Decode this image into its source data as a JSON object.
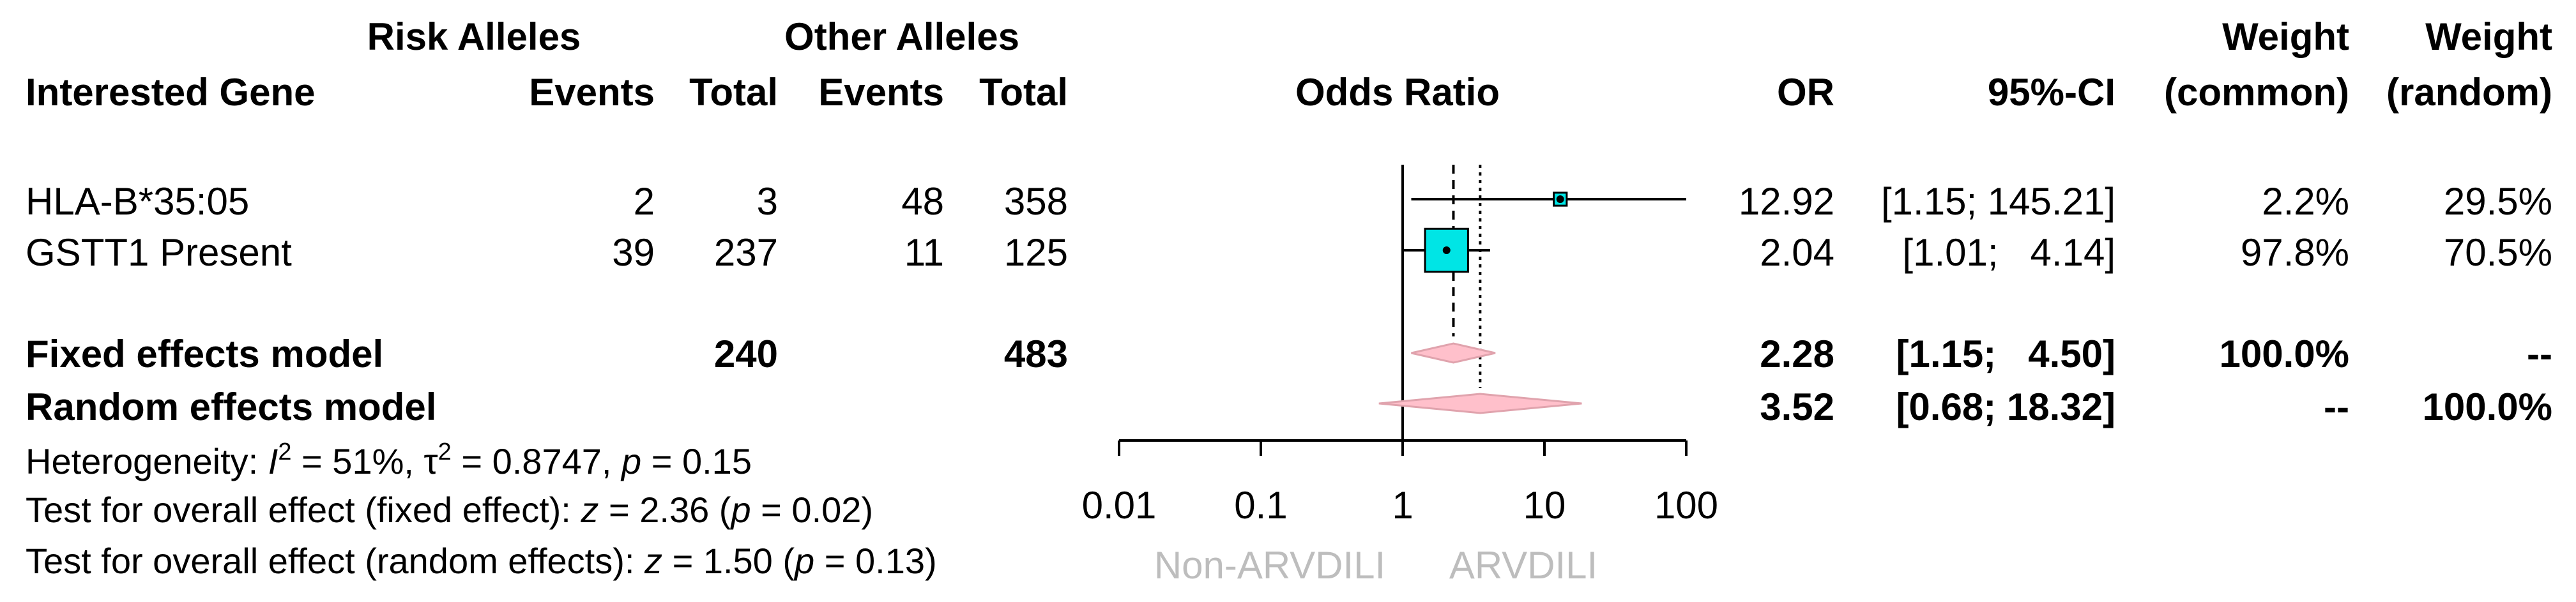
{
  "chart_data": {
    "type": "forest",
    "xscale": "log",
    "xlim": [
      0.01,
      100
    ],
    "xlabel": "Odds Ratio",
    "xticks": [
      "0.01",
      "0.1",
      "1",
      "10",
      "100"
    ],
    "left_label": "Non-ARVDILI",
    "right_label": "ARVDILI",
    "headers": {
      "gene": "Interested Gene",
      "risk_group": "Risk Alleles",
      "other_group": "Other Alleles",
      "events": "Events",
      "total": "Total",
      "or": "OR",
      "ci": "95%-CI",
      "weight": "Weight",
      "common": "(common)",
      "random": "(random)"
    },
    "studies": [
      {
        "name": "HLA-B*35:05",
        "risk_events": "2",
        "risk_total": "3",
        "other_events": "48",
        "other_total": "358",
        "or": 12.92,
        "lower": 1.15,
        "upper": 145.21,
        "or_text": "12.92",
        "ci_text": "[1.15; 145.21]",
        "w_common": "2.2%",
        "w_random": "29.5%",
        "weight_common": 2.2
      },
      {
        "name": "GSTT1 Present",
        "risk_events": "39",
        "risk_total": "237",
        "other_events": "11",
        "other_total": "125",
        "or": 2.04,
        "lower": 1.01,
        "upper": 4.14,
        "or_text": "2.04",
        "ci_text": "[1.01;   4.14]",
        "w_common": "97.8%",
        "w_random": "70.5%",
        "weight_common": 97.8
      }
    ],
    "pooled": [
      {
        "name": "Fixed effects model",
        "risk_total": "240",
        "other_total": "483",
        "or": 2.28,
        "lower": 1.15,
        "upper": 4.5,
        "or_text": "2.28",
        "ci_text": "[1.15;   4.50]",
        "w_common": "100.0%",
        "w_random": "--"
      },
      {
        "name": "Random effects model",
        "or": 3.52,
        "lower": 0.68,
        "upper": 18.32,
        "or_text": "3.52",
        "ci_text": "[0.68; 18.32]",
        "w_common": "--",
        "w_random": "100.0%"
      }
    ],
    "heterogeneity": {
      "label": "Heterogeneity: ",
      "I2_symbol": "I",
      "I2_sup": "2",
      "I2_value": " = 51%, ",
      "tau_symbol": "τ",
      "tau_sup": "2",
      "tau_value": " = 0.8747, ",
      "p_symbol": "p",
      "p_value": " = 0.15"
    },
    "test_fixed": {
      "label": "Test for overall effect (fixed effect): ",
      "z_symbol": "z",
      "z_value": " = 2.36 (",
      "p_symbol": "p",
      "p_value": " = 0.02)"
    },
    "test_random": {
      "label": "Test for overall effect (random effects): ",
      "z_symbol": "z",
      "z_value": " = 1.50 (",
      "p_symbol": "p",
      "p_value": " = 0.13)"
    },
    "colors": {
      "square": "#00e5e5",
      "diamond_fill": "#ffc0cb",
      "diamond_stroke": "#e0a3ad",
      "axis": "#000000",
      "label_grey": "#bdbdbd"
    }
  }
}
